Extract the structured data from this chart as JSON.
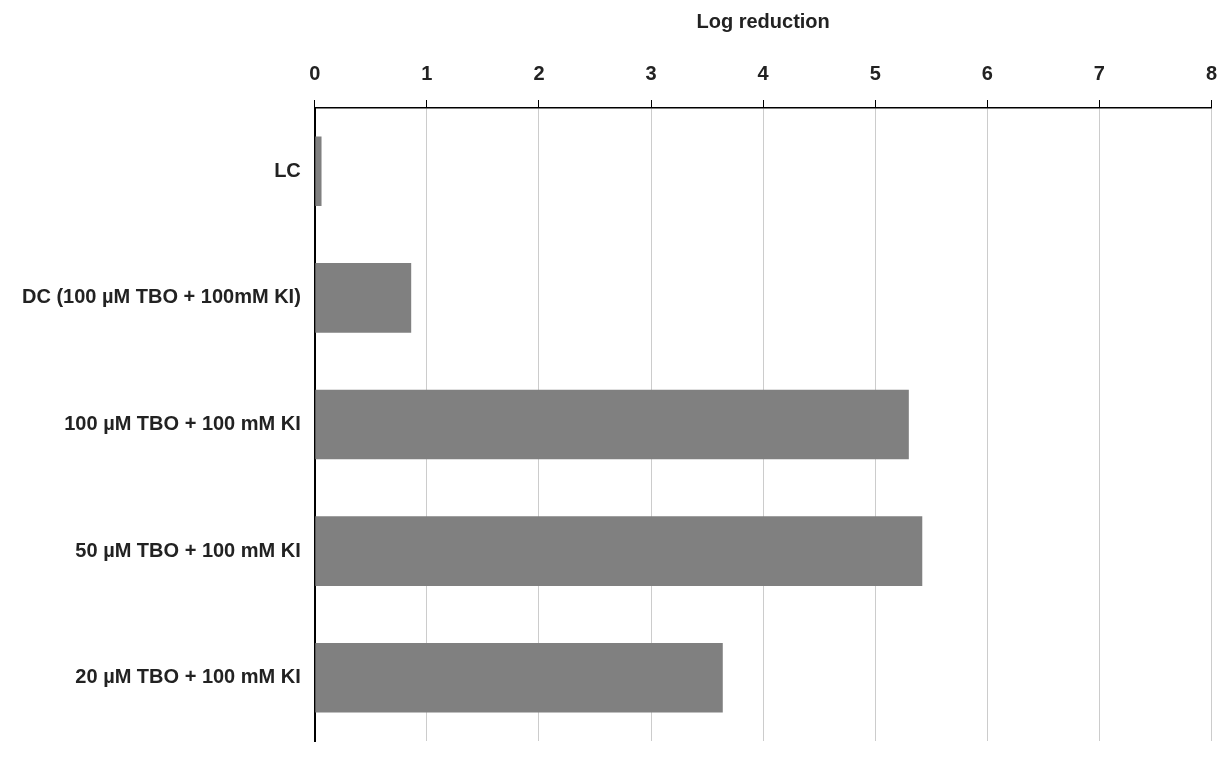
{
  "chart_data": {
    "type": "bar",
    "orientation": "horizontal",
    "xlabel": "Log reduction",
    "categories": [
      "LC",
      "DC (100 µM TBO + 100mM KI)",
      "100 µM TBO + 100 mM KI",
      "50 µM TBO + 100 mM KI",
      "20 µM TBO + 100 mM KI"
    ],
    "values": [
      0.06,
      0.86,
      5.3,
      5.42,
      3.64
    ],
    "color": "#808080",
    "xlim": [
      0,
      8
    ],
    "xticks": [
      0,
      1,
      2,
      3,
      4,
      5,
      6,
      7,
      8
    ],
    "grid": "x",
    "legend": false
  }
}
